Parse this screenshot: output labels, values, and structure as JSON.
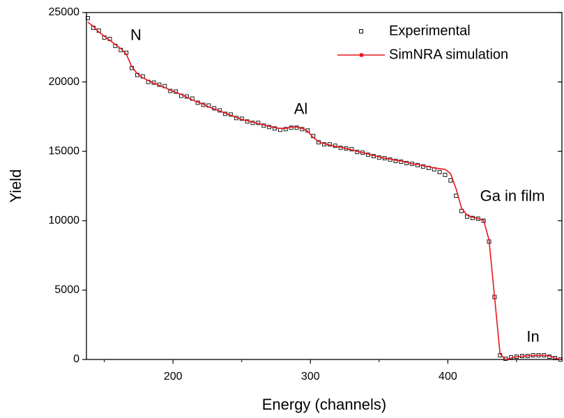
{
  "chart_data": {
    "type": "scatter-line",
    "x_label": "Energy (channels)",
    "y_label": "Yield",
    "xlim": [
      137,
      483
    ],
    "ylim": [
      0,
      25000
    ],
    "xticks": [
      200,
      300,
      400
    ],
    "xminor": [
      150,
      250,
      350,
      450
    ],
    "yticks": [
      0,
      5000,
      10000,
      15000,
      20000,
      25000
    ],
    "legend": "upper right",
    "x": [
      138,
      142,
      146,
      150,
      154,
      158,
      162,
      166,
      170,
      174,
      178,
      182,
      186,
      190,
      194,
      198,
      202,
      206,
      210,
      214,
      218,
      222,
      226,
      230,
      234,
      238,
      242,
      246,
      250,
      254,
      258,
      262,
      266,
      270,
      274,
      278,
      282,
      286,
      290,
      294,
      298,
      302,
      306,
      310,
      314,
      318,
      322,
      326,
      330,
      334,
      338,
      342,
      346,
      350,
      354,
      358,
      362,
      366,
      370,
      374,
      378,
      382,
      386,
      390,
      394,
      398,
      402,
      406,
      410,
      414,
      418,
      422,
      426,
      430,
      434,
      438,
      442,
      446,
      450,
      454,
      458,
      462,
      466,
      470,
      474,
      478,
      482
    ],
    "series": [
      {
        "name": "Experimental",
        "color": "#000000",
        "style": "open-square",
        "values": [
          24600,
          23900,
          23700,
          23200,
          23100,
          22600,
          22300,
          22100,
          21000,
          20500,
          20400,
          20000,
          19950,
          19800,
          19700,
          19350,
          19300,
          19000,
          18950,
          18800,
          18500,
          18350,
          18300,
          18100,
          17950,
          17700,
          17650,
          17400,
          17350,
          17150,
          17050,
          17050,
          16850,
          16750,
          16650,
          16550,
          16600,
          16700,
          16700,
          16600,
          16500,
          16100,
          15650,
          15500,
          15500,
          15400,
          15250,
          15200,
          15150,
          14950,
          14900,
          14750,
          14650,
          14550,
          14500,
          14400,
          14300,
          14250,
          14150,
          14100,
          14000,
          13900,
          13800,
          13700,
          13500,
          13300,
          12900,
          11800,
          10700,
          10300,
          10200,
          10150,
          10000,
          8500,
          4500,
          300,
          50,
          150,
          200,
          250,
          250,
          300,
          300,
          300,
          200,
          100,
          0
        ]
      },
      {
        "name": "SimNRA simulation",
        "color": "#e8141b",
        "style": "line",
        "values": [
          24300,
          24000,
          23600,
          23300,
          23000,
          22700,
          22400,
          22000,
          21100,
          20600,
          20300,
          20100,
          19900,
          19750,
          19600,
          19400,
          19250,
          19100,
          18900,
          18700,
          18550,
          18400,
          18200,
          18050,
          17900,
          17750,
          17600,
          17450,
          17300,
          17200,
          17100,
          17000,
          16900,
          16800,
          16700,
          16650,
          16650,
          16750,
          16750,
          16650,
          16450,
          16000,
          15700,
          15550,
          15450,
          15350,
          15300,
          15200,
          15100,
          15000,
          14900,
          14800,
          14700,
          14600,
          14500,
          14450,
          14350,
          14300,
          14200,
          14100,
          14050,
          13950,
          13900,
          13800,
          13750,
          13700,
          13400,
          12300,
          10900,
          10400,
          10250,
          10150,
          10050,
          8600,
          4500,
          400,
          0,
          100,
          200,
          230,
          260,
          280,
          300,
          290,
          250,
          100,
          0
        ]
      }
    ],
    "annotations": [
      {
        "text": "N",
        "x": 173,
        "y": 23300
      },
      {
        "text": "Al",
        "x": 293,
        "y": 18000
      },
      {
        "text": "Ga in film",
        "x": 447,
        "y": 11700
      },
      {
        "text": "In",
        "x": 462,
        "y": 1560
      }
    ]
  }
}
